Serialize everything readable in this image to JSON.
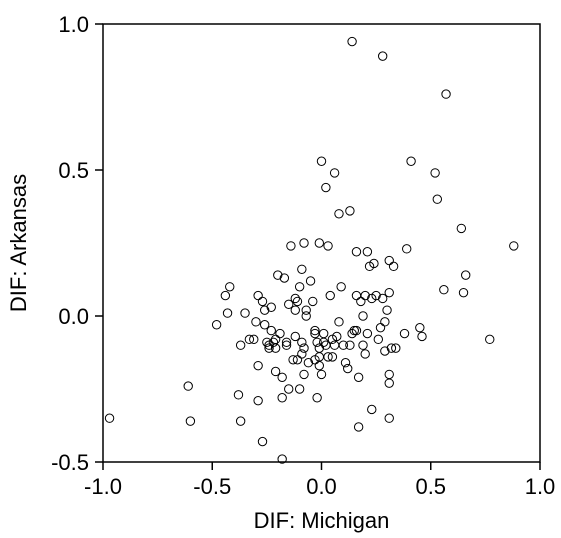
{
  "chart_data": {
    "type": "scatter",
    "xlabel": "DIF: Michigan",
    "ylabel": "DIF: Arkansas",
    "xlim": [
      -1.0,
      1.0
    ],
    "ylim": [
      -0.5,
      1.0
    ],
    "xticks": [
      -1.0,
      -0.5,
      0.0,
      0.5,
      1.0
    ],
    "xtick_labels": [
      "-1.0",
      "-0.5",
      "0.0",
      "0.5",
      "1.0"
    ],
    "yticks": [
      -0.5,
      0.0,
      0.5,
      1.0
    ],
    "ytick_labels": [
      "-0.5",
      "0.0",
      "0.5",
      "1.0"
    ],
    "grid": false,
    "marker": "open-circle",
    "points": [
      [
        -0.97,
        -0.35
      ],
      [
        -0.61,
        -0.24
      ],
      [
        -0.6,
        -0.36
      ],
      [
        -0.48,
        -0.03
      ],
      [
        -0.44,
        0.07
      ],
      [
        -0.42,
        0.1
      ],
      [
        -0.43,
        0.01
      ],
      [
        -0.37,
        -0.1
      ],
      [
        -0.38,
        -0.27
      ],
      [
        -0.37,
        -0.36
      ],
      [
        -0.35,
        0.01
      ],
      [
        -0.33,
        -0.08
      ],
      [
        -0.31,
        -0.08
      ],
      [
        -0.3,
        -0.02
      ],
      [
        -0.29,
        0.07
      ],
      [
        -0.29,
        -0.17
      ],
      [
        -0.29,
        -0.29
      ],
      [
        -0.27,
        0.05
      ],
      [
        -0.27,
        -0.43
      ],
      [
        -0.26,
        0.02
      ],
      [
        -0.26,
        -0.03
      ],
      [
        -0.25,
        -0.09
      ],
      [
        -0.24,
        -0.1
      ],
      [
        -0.24,
        -0.11
      ],
      [
        -0.23,
        0.03
      ],
      [
        -0.23,
        -0.05
      ],
      [
        -0.22,
        -0.09
      ],
      [
        -0.21,
        -0.11
      ],
      [
        -0.21,
        -0.19
      ],
      [
        -0.21,
        -0.08
      ],
      [
        -0.2,
        0.14
      ],
      [
        -0.19,
        -0.06
      ],
      [
        -0.18,
        -0.21
      ],
      [
        -0.18,
        -0.28
      ],
      [
        -0.17,
        0.13
      ],
      [
        -0.18,
        -0.49
      ],
      [
        -0.16,
        -0.09
      ],
      [
        -0.16,
        -0.1
      ],
      [
        -0.15,
        0.04
      ],
      [
        -0.15,
        -0.25
      ],
      [
        -0.14,
        0.24
      ],
      [
        -0.13,
        -0.15
      ],
      [
        -0.12,
        0.06
      ],
      [
        -0.12,
        -0.07
      ],
      [
        -0.12,
        0.02
      ],
      [
        -0.11,
        0.05
      ],
      [
        -0.11,
        -0.15
      ],
      [
        -0.1,
        0.1
      ],
      [
        -0.09,
        0.16
      ],
      [
        -0.1,
        -0.25
      ],
      [
        -0.09,
        -0.09
      ],
      [
        -0.09,
        -0.13
      ],
      [
        -0.08,
        -0.11
      ],
      [
        -0.08,
        -0.2
      ],
      [
        -0.08,
        0.25
      ],
      [
        -0.07,
        0.0
      ],
      [
        -0.07,
        0.02
      ],
      [
        -0.06,
        -0.16
      ],
      [
        -0.05,
        0.12
      ],
      [
        -0.04,
        0.05
      ],
      [
        -0.03,
        -0.05
      ],
      [
        -0.03,
        -0.06
      ],
      [
        -0.03,
        -0.15
      ],
      [
        -0.02,
        -0.09
      ],
      [
        -0.02,
        -0.28
      ],
      [
        -0.01,
        -0.11
      ],
      [
        -0.01,
        0.25
      ],
      [
        -0.01,
        -0.17
      ],
      [
        -0.01,
        -0.14
      ],
      [
        0.0,
        -0.2
      ],
      [
        0.0,
        0.53
      ],
      [
        0.01,
        -0.06
      ],
      [
        0.02,
        0.44
      ],
      [
        0.01,
        -0.09
      ],
      [
        0.02,
        -0.1
      ],
      [
        0.03,
        0.24
      ],
      [
        0.03,
        -0.14
      ],
      [
        0.04,
        0.07
      ],
      [
        0.05,
        -0.08
      ],
      [
        0.05,
        -0.14
      ],
      [
        0.06,
        0.49
      ],
      [
        0.06,
        -0.1
      ],
      [
        0.07,
        -0.07
      ],
      [
        0.08,
        0.35
      ],
      [
        0.08,
        -0.02
      ],
      [
        0.09,
        0.1
      ],
      [
        0.1,
        -0.1
      ],
      [
        0.11,
        -0.16
      ],
      [
        0.12,
        -0.18
      ],
      [
        0.13,
        -0.1
      ],
      [
        0.13,
        0.36
      ],
      [
        0.14,
        0.94
      ],
      [
        0.14,
        -0.06
      ],
      [
        0.15,
        -0.05
      ],
      [
        0.16,
        0.22
      ],
      [
        0.16,
        -0.05
      ],
      [
        0.16,
        0.07
      ],
      [
        0.17,
        -0.21
      ],
      [
        0.17,
        -0.38
      ],
      [
        0.18,
        0.05
      ],
      [
        0.19,
        0.0
      ],
      [
        0.19,
        -0.1
      ],
      [
        0.2,
        0.07
      ],
      [
        0.2,
        -0.13
      ],
      [
        0.21,
        0.22
      ],
      [
        0.21,
        -0.06
      ],
      [
        0.22,
        0.17
      ],
      [
        0.23,
        -0.32
      ],
      [
        0.23,
        0.06
      ],
      [
        0.24,
        0.18
      ],
      [
        0.25,
        0.07
      ],
      [
        0.26,
        -0.08
      ],
      [
        0.27,
        -0.04
      ],
      [
        0.28,
        0.06
      ],
      [
        0.28,
        0.89
      ],
      [
        0.29,
        -0.02
      ],
      [
        0.29,
        -0.12
      ],
      [
        0.3,
        0.02
      ],
      [
        0.31,
        0.19
      ],
      [
        0.31,
        0.08
      ],
      [
        0.31,
        -0.2
      ],
      [
        0.31,
        -0.23
      ],
      [
        0.31,
        -0.35
      ],
      [
        0.32,
        -0.11
      ],
      [
        0.33,
        0.17
      ],
      [
        0.34,
        -0.11
      ],
      [
        0.38,
        -0.06
      ],
      [
        0.39,
        0.23
      ],
      [
        0.41,
        0.53
      ],
      [
        0.45,
        -0.04
      ],
      [
        0.46,
        -0.07
      ],
      [
        0.52,
        0.49
      ],
      [
        0.53,
        0.4
      ],
      [
        0.56,
        0.09
      ],
      [
        0.57,
        0.76
      ],
      [
        0.64,
        0.3
      ],
      [
        0.65,
        0.08
      ],
      [
        0.66,
        0.14
      ],
      [
        0.77,
        -0.08
      ],
      [
        0.88,
        0.24
      ]
    ]
  }
}
